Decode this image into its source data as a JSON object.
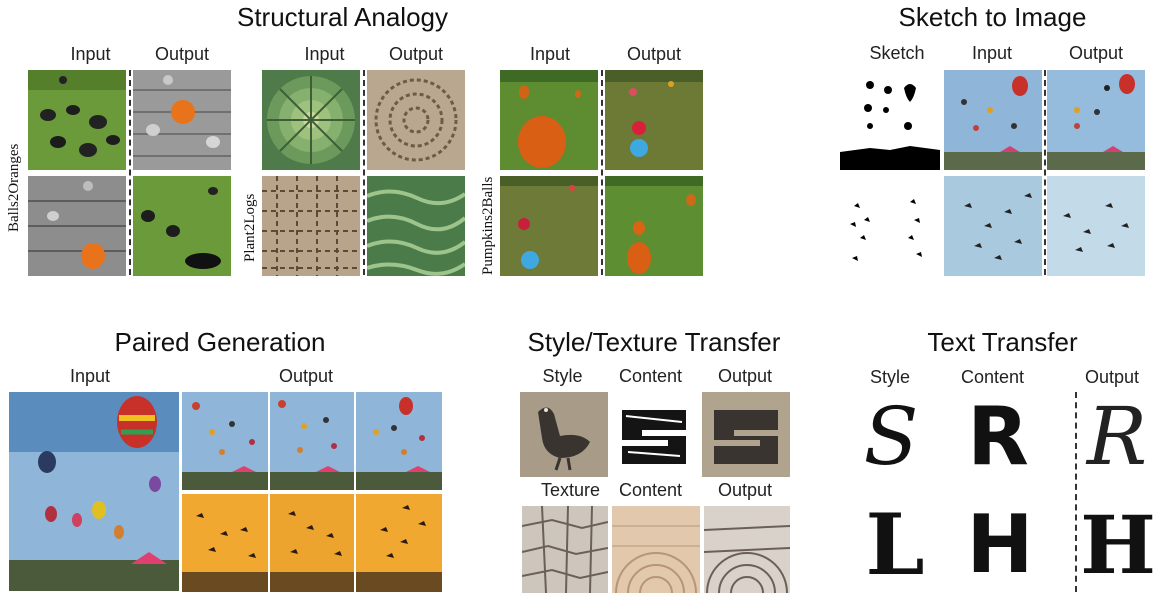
{
  "sections": {
    "structural_analogy": {
      "title": "Structural Analogy",
      "groups": [
        {
          "input": "Input",
          "output": "Output",
          "label": "Balls2Oranges"
        },
        {
          "input": "Input",
          "output": "Output",
          "label": "Plant2Logs"
        },
        {
          "input": "Input",
          "output": "Output",
          "label": "Pumpkins2Balls"
        }
      ]
    },
    "sketch_to_image": {
      "title": "Sketch to Image",
      "sketch": "Sketch",
      "input": "Input",
      "output": "Output"
    },
    "paired_generation": {
      "title": "Paired Generation",
      "input": "Input",
      "output": "Output"
    },
    "style_texture_transfer": {
      "title": "Style/Texture Transfer",
      "row1": {
        "style": "Style",
        "content": "Content",
        "output": "Output"
      },
      "row2": {
        "texture": "Texture",
        "content": "Content",
        "output": "Output"
      }
    },
    "text_transfer": {
      "title": "Text Transfer",
      "style": "Style",
      "content": "Content",
      "output": "Output",
      "glyphs": [
        "S",
        "R",
        "R",
        "L",
        "H",
        "H"
      ]
    }
  },
  "colors": {
    "grass": "#5f8f34",
    "wood": "#8a8a8a",
    "orange": "#e8731a",
    "sky": "#8fb6d8",
    "sunset": "#f0a830",
    "pebble": "#a89c88"
  },
  "icons": {
    "balloon": "hot-air-balloon-icon",
    "bird": "bird-icon"
  }
}
